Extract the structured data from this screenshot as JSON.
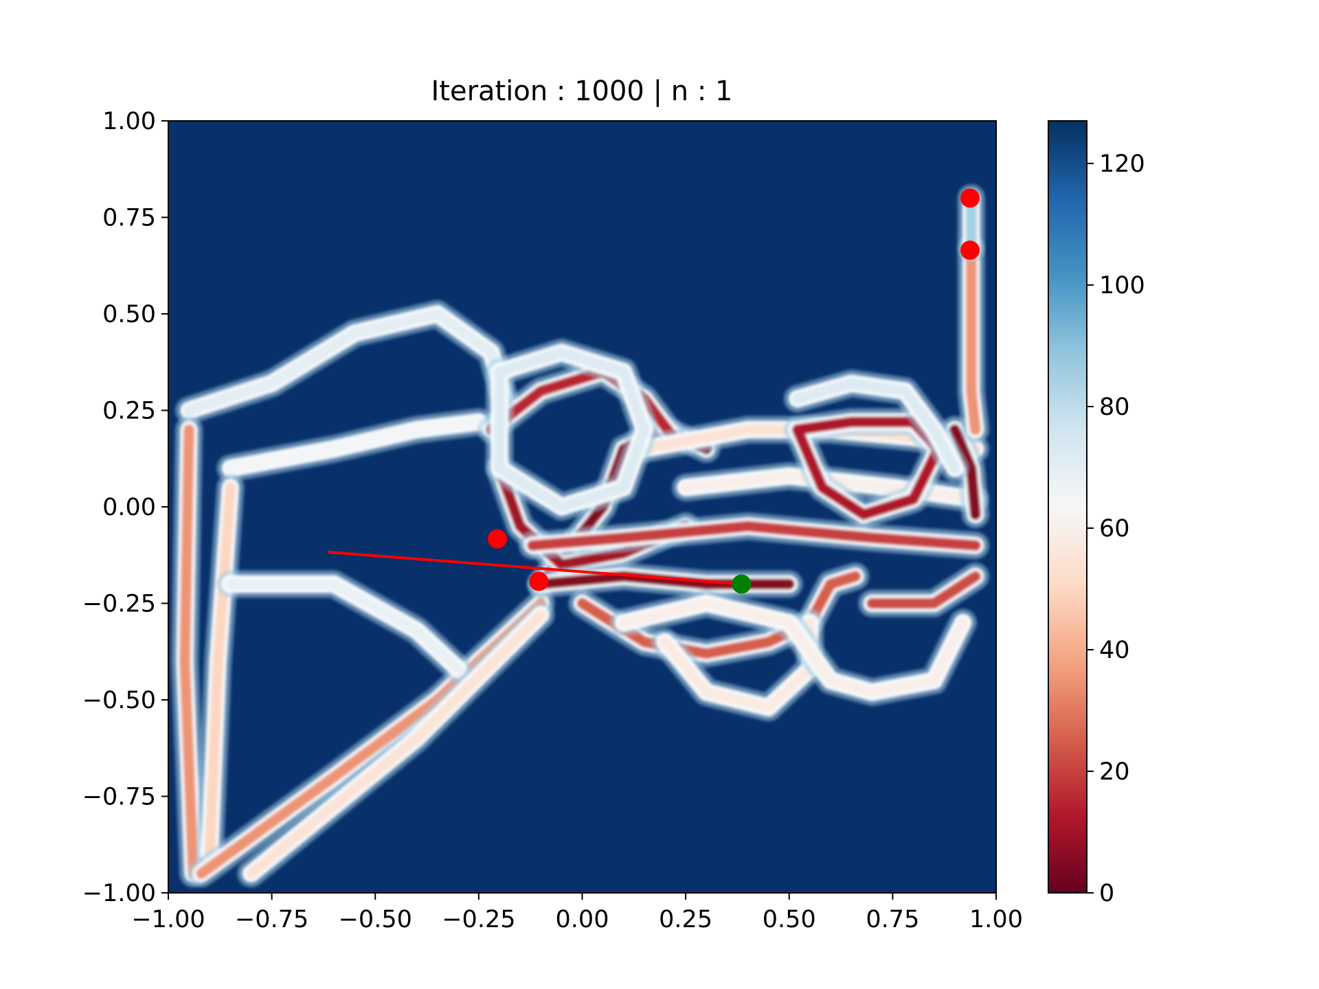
{
  "title": "Iteration : 1000 | n : 1",
  "colors": {
    "background": "#08306b",
    "colormap": [
      "#67001f",
      "#b2182b",
      "#d6604d",
      "#f4a582",
      "#fddbc7",
      "#f7f7f7",
      "#d1e5f0",
      "#92c5de",
      "#4393c3",
      "#2166ac",
      "#053061"
    ],
    "red_marker": "#ff0000",
    "green_marker": "#008000",
    "path_line": "#ff0000"
  },
  "chart_data": {
    "type": "heatmap",
    "title": "Iteration : 1000 | n : 1",
    "xlim": [
      -1.0,
      1.0
    ],
    "ylim": [
      -1.0,
      1.0
    ],
    "x_ticks": [
      "−1.00",
      "−0.75",
      "−0.50",
      "−0.25",
      "0.00",
      "0.25",
      "0.50",
      "0.75",
      "1.00"
    ],
    "y_ticks": [
      "−1.00",
      "−0.75",
      "−0.50",
      "−0.25",
      "0.00",
      "0.25",
      "0.50",
      "0.75",
      "1.00"
    ],
    "x_tick_values": [
      -1.0,
      -0.75,
      -0.5,
      -0.25,
      0.0,
      0.25,
      0.5,
      0.75,
      1.0
    ],
    "y_tick_values": [
      -1.0,
      -0.75,
      -0.5,
      -0.25,
      0.0,
      0.25,
      0.5,
      0.75,
      1.0
    ],
    "colorbar": {
      "range": [
        0,
        127
      ],
      "ticks": [
        "0",
        "20",
        "40",
        "60",
        "80",
        "100",
        "120"
      ],
      "tick_values": [
        0,
        20,
        40,
        60,
        80,
        100,
        120
      ]
    },
    "trajectories": [
      {
        "points": [
          [
            -0.95,
            0.25
          ],
          [
            -0.75,
            0.32
          ],
          [
            -0.55,
            0.45
          ],
          [
            -0.35,
            0.5
          ],
          [
            -0.22,
            0.4
          ],
          [
            -0.18,
            0.25
          ]
        ],
        "value": 70
      },
      {
        "points": [
          [
            -0.85,
            0.1
          ],
          [
            -0.6,
            0.15
          ],
          [
            -0.4,
            0.2
          ],
          [
            -0.25,
            0.22
          ]
        ],
        "value": 65
      },
      {
        "points": [
          [
            -0.95,
            0.2
          ],
          [
            -0.96,
            -0.4
          ],
          [
            -0.94,
            -0.95
          ]
        ],
        "value": 35
      },
      {
        "points": [
          [
            -0.85,
            0.05
          ],
          [
            -0.88,
            -0.4
          ],
          [
            -0.9,
            -0.9
          ]
        ],
        "value": 50
      },
      {
        "points": [
          [
            -0.92,
            -0.95
          ],
          [
            -0.6,
            -0.7
          ],
          [
            -0.35,
            -0.5
          ],
          [
            -0.1,
            -0.25
          ]
        ],
        "value": 35
      },
      {
        "points": [
          [
            -0.85,
            -0.2
          ],
          [
            -0.6,
            -0.2
          ],
          [
            -0.4,
            -0.32
          ],
          [
            -0.3,
            -0.42
          ]
        ],
        "value": 68
      },
      {
        "points": [
          [
            -0.8,
            -0.95
          ],
          [
            -0.4,
            -0.6
          ],
          [
            -0.1,
            -0.28
          ]
        ],
        "value": 55
      },
      {
        "points": [
          [
            -0.1,
            -0.2
          ],
          [
            0.05,
            0.0
          ],
          [
            0.1,
            0.15
          ],
          [
            0.2,
            0.2
          ],
          [
            0.3,
            0.15
          ]
        ],
        "value": 5
      },
      {
        "points": [
          [
            -0.22,
            0.2
          ],
          [
            -0.1,
            0.3
          ],
          [
            0.05,
            0.35
          ],
          [
            0.15,
            0.28
          ],
          [
            0.22,
            0.18
          ]
        ],
        "value": 15
      },
      {
        "points": [
          [
            -0.2,
            0.1
          ],
          [
            -0.15,
            -0.05
          ],
          [
            -0.05,
            -0.15
          ],
          [
            0.1,
            -0.12
          ],
          [
            0.25,
            -0.05
          ]
        ],
        "value": 10
      },
      {
        "points": [
          [
            -0.1,
            -0.2
          ],
          [
            0.1,
            -0.18
          ],
          [
            0.3,
            -0.2
          ],
          [
            0.5,
            -0.2
          ]
        ],
        "value": 5
      },
      {
        "points": [
          [
            -0.12,
            -0.1
          ],
          [
            0.1,
            -0.08
          ],
          [
            0.4,
            -0.05
          ],
          [
            0.7,
            -0.08
          ],
          [
            0.95,
            -0.1
          ]
        ],
        "value": 20
      },
      {
        "points": [
          [
            0.15,
            0.15
          ],
          [
            0.4,
            0.2
          ],
          [
            0.6,
            0.2
          ],
          [
            0.8,
            0.18
          ],
          [
            0.95,
            0.15
          ]
        ],
        "value": 55
      },
      {
        "points": [
          [
            0.25,
            0.05
          ],
          [
            0.5,
            0.08
          ],
          [
            0.75,
            0.05
          ],
          [
            0.95,
            0.02
          ]
        ],
        "value": 60
      },
      {
        "points": [
          [
            0.52,
            0.2
          ],
          [
            0.58,
            0.05
          ],
          [
            0.68,
            -0.02
          ],
          [
            0.8,
            0.02
          ],
          [
            0.86,
            0.15
          ],
          [
            0.8,
            0.22
          ],
          [
            0.65,
            0.22
          ],
          [
            0.52,
            0.2
          ]
        ],
        "value": 12
      },
      {
        "points": [
          [
            0.9,
            0.2
          ],
          [
            0.94,
            0.1
          ],
          [
            0.95,
            -0.02
          ]
        ],
        "value": 5
      },
      {
        "points": [
          [
            0.94,
            0.67
          ],
          [
            0.94,
            0.5
          ],
          [
            0.94,
            0.3
          ],
          [
            0.95,
            0.2
          ]
        ],
        "value": 35
      },
      {
        "points": [
          [
            0.94,
            0.8
          ],
          [
            0.94,
            0.67
          ]
        ],
        "value": 85
      },
      {
        "points": [
          [
            0.0,
            -0.25
          ],
          [
            0.15,
            -0.35
          ],
          [
            0.3,
            -0.38
          ],
          [
            0.45,
            -0.35
          ],
          [
            0.55,
            -0.3
          ],
          [
            0.6,
            -0.2
          ],
          [
            0.66,
            -0.18
          ]
        ],
        "value": 25
      },
      {
        "points": [
          [
            0.2,
            -0.35
          ],
          [
            0.3,
            -0.48
          ],
          [
            0.45,
            -0.52
          ],
          [
            0.55,
            -0.42
          ],
          [
            0.55,
            -0.3
          ]
        ],
        "value": 58
      },
      {
        "points": [
          [
            0.1,
            -0.3
          ],
          [
            0.3,
            -0.25
          ],
          [
            0.5,
            -0.3
          ],
          [
            0.6,
            -0.45
          ],
          [
            0.7,
            -0.48
          ],
          [
            0.85,
            -0.45
          ],
          [
            0.92,
            -0.3
          ]
        ],
        "value": 60
      },
      {
        "points": [
          [
            0.7,
            -0.25
          ],
          [
            0.85,
            -0.25
          ],
          [
            0.95,
            -0.18
          ]
        ],
        "value": 22
      },
      {
        "points": [
          [
            -0.2,
            0.35
          ],
          [
            -0.05,
            0.4
          ],
          [
            0.1,
            0.35
          ],
          [
            0.15,
            0.2
          ],
          [
            0.1,
            0.05
          ],
          [
            -0.05,
            0.0
          ],
          [
            -0.2,
            0.1
          ],
          [
            -0.2,
            0.35
          ]
        ],
        "value": 72
      },
      {
        "points": [
          [
            0.52,
            0.28
          ],
          [
            0.65,
            0.32
          ],
          [
            0.78,
            0.3
          ],
          [
            0.85,
            0.2
          ],
          [
            0.9,
            0.1
          ]
        ],
        "value": 72
      }
    ],
    "markers": [
      {
        "x": 0.937,
        "y": 0.8,
        "color": "red"
      },
      {
        "x": 0.937,
        "y": 0.665,
        "color": "red"
      },
      {
        "x": -0.205,
        "y": -0.083,
        "color": "red"
      },
      {
        "x": -0.105,
        "y": -0.193,
        "color": "red"
      },
      {
        "x": 0.385,
        "y": -0.2,
        "color": "green"
      }
    ],
    "path_line": {
      "points": [
        [
          -0.615,
          -0.117
        ],
        [
          0.385,
          -0.2
        ]
      ]
    }
  }
}
